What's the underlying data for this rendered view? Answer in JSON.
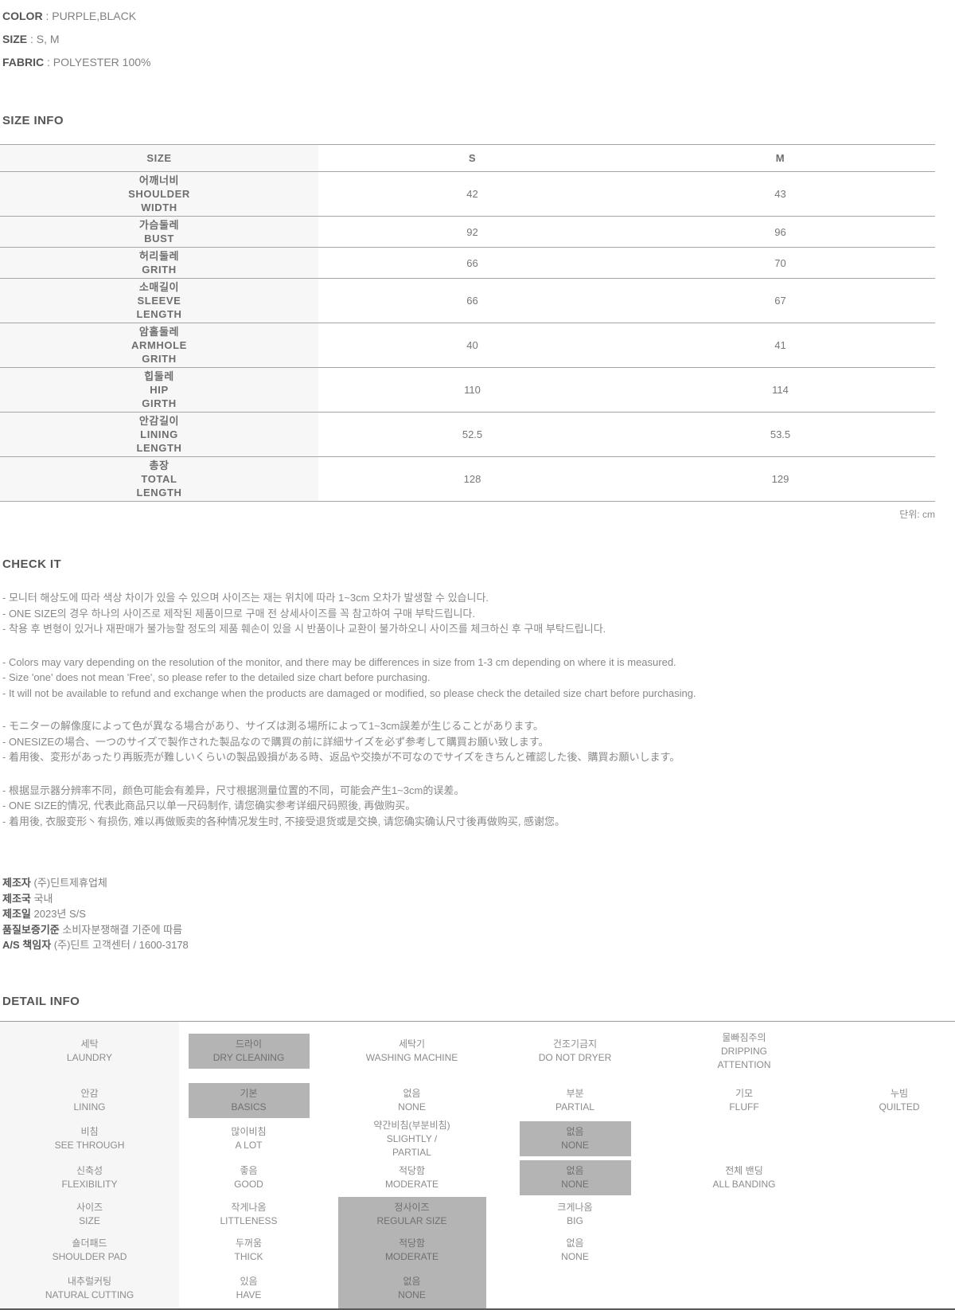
{
  "colors": {
    "highlight_gray": "#b4b4b4",
    "label_column_bg": "#f7f7f7",
    "heading_text": "#555555",
    "body_text": "#888888",
    "table_line": "#a6a6a6"
  },
  "product_info": {
    "rows": [
      {
        "label": "COLOR",
        "sep": " : ",
        "value": "PURPLE,BLACK"
      },
      {
        "label": "SIZE",
        "sep": " : ",
        "value": "S, M"
      },
      {
        "label": "FABRIC",
        "sep": " : ",
        "value": "POLYESTER 100%"
      }
    ]
  },
  "size_info": {
    "heading": "SIZE INFO",
    "unit_note": "단위: cm",
    "table": {
      "columns": [
        "SIZE",
        "S",
        "M"
      ],
      "rows": [
        {
          "name_ko": "어깨너비",
          "name_en": "SHOULDER\nWIDTH",
          "s": "42",
          "m": "43"
        },
        {
          "name_ko": "가슴둘레",
          "name_en": "BUST",
          "s": "92",
          "m": "96"
        },
        {
          "name_ko": "허리둘레",
          "name_en": "GRITH",
          "s": "66",
          "m": "70"
        },
        {
          "name_ko": "소매길이",
          "name_en": "SLEEVE\nLENGTH",
          "s": "66",
          "m": "67"
        },
        {
          "name_ko": "암홀둘레",
          "name_en": "ARMHOLE\nGRITH",
          "s": "40",
          "m": "41"
        },
        {
          "name_ko": "힙둘레",
          "name_en": "HIP\nGIRTH",
          "s": "110",
          "m": "114"
        },
        {
          "name_ko": "안감길이",
          "name_en": "LINING\nLENGTH",
          "s": "52.5",
          "m": "53.5"
        },
        {
          "name_ko": "총장",
          "name_en": "TOTAL\nLENGTH",
          "s": "128",
          "m": "129"
        }
      ]
    }
  },
  "check_it": {
    "heading": "CHECK IT",
    "paragraphs": [
      {
        "lines": [
          "- 모니터 해상도에 따라 색상 차이가 있을 수 있으며 사이즈는 재는 위치에 따라 1~3cm 오차가 발생할 수 있습니다.",
          "- ONE SIZE의 경우 하나의 사이즈로 제작된 제품이므로 구매 전 상세사이즈를 꼭 참고하여 구매 부탁드립니다.",
          "- 착용 후 변형이 있거나 재판매가 불가능할 정도의 제품 훼손이 있을 시 반품이나 교환이 불가하오니 사이즈를 체크하신 후 구매 부탁드립니다."
        ]
      },
      {
        "lines": [
          "- Colors may vary depending on the resolution of the monitor, and there may be differences in size from 1-3 cm depending on where it is measured.",
          "- Size 'one' does not mean 'Free', so please refer to the detailed size chart before purchasing.",
          "- It will not be available to refund and exchange when the products are damaged or modified, so please check the detailed size chart before purchasing."
        ]
      },
      {
        "lines": [
          "- モニターの解像度によって色が異なる場合があり、サイズは測る場所によって1~3cm誤差が生じることがあります。",
          "- ONESIZEの場合、一つのサイズで製作された製品なので購買の前に詳細サイズを必ず参考して購買お願い致します。",
          "- 着用後、変形があったり再販売が難しいくらいの製品毀損がある時、返品や交換が不可なのでサイズをきちんと確認した後、購買お願いします。"
        ]
      },
      {
        "lines": [
          "- 根据显示器分辨率不同，颜色可能会有差异，尺寸根据测量位置的不同，可能会产生1~3cm的误差。",
          "- ONE SIZE的情况, 代表此商品只以单一尺码制作, 请您确实参考详细尺码照後, 再做购买。",
          "- 着用後, 衣服变形丶有损伤, 难以再做贩卖的各种情况发生时, 不接受退货或是交换, 请您确实确认尺寸後再做购买, 感谢您。"
        ]
      }
    ]
  },
  "manufacturer": {
    "rows": [
      {
        "label": "제조자",
        "value": "(주)딘트제휴업체"
      },
      {
        "label": "제조국",
        "value": "국내"
      },
      {
        "label": "제조일",
        "value": "2023년 S/S"
      },
      {
        "label": "품질보증기준",
        "value": "소비자분쟁해결 기준에 따름"
      },
      {
        "label": "A/S 책임자",
        "value": "(주)딘트 고객센터 / 1600-3178"
      }
    ]
  },
  "detail_info": {
    "heading": "DETAIL INFO",
    "rows": [
      {
        "category": {
          "ko": "세탁",
          "en": "LAUNDRY"
        },
        "options": {
          "c2": {
            "ko": "드라이",
            "en": "DRY CLEANING",
            "selected": true
          },
          "c3": {
            "ko": "세탁기",
            "en": "WASHING MACHINE"
          },
          "c4": {
            "ko": "건조기금지",
            "en": "DO NOT DRYER"
          },
          "c5": {
            "ko": "물빠짐주의",
            "en": "DRIPPING\nATTENTION"
          }
        }
      },
      {
        "category": {
          "ko": "안감",
          "en": "LINING"
        },
        "options": {
          "c2": {
            "ko": "기본",
            "en": "BASICS",
            "selected": true
          },
          "c3": {
            "ko": "없음",
            "en": "NONE"
          },
          "c4": {
            "ko": "부분",
            "en": "PARTIAL"
          },
          "c5": {
            "ko": "기모",
            "en": "FLUFF"
          },
          "c6": {
            "ko": "누빔",
            "en": "QUILTED"
          }
        }
      },
      {
        "category": {
          "ko": "비침",
          "en": "SEE THROUGH"
        },
        "options": {
          "c2": {
            "ko": "많이비침",
            "en": "A LOT"
          },
          "c3": {
            "ko": "약간비침(부분비침)",
            "en": "SLIGHTLY /\nPARTIAL"
          },
          "c4": {
            "ko": "없음",
            "en": "NONE",
            "selected": true
          }
        }
      },
      {
        "category": {
          "ko": "신축성",
          "en": "FLEXIBILITY"
        },
        "options": {
          "c2": {
            "ko": "좋음",
            "en": "GOOD"
          },
          "c3": {
            "ko": "적당함",
            "en": "MODERATE"
          },
          "c4": {
            "ko": "없음",
            "en": "NONE",
            "selected": true
          },
          "c5": {
            "ko": "전체 밴딩",
            "en": "ALL BANDING"
          }
        }
      },
      {
        "category": {
          "ko": "사이즈",
          "en": "SIZE"
        },
        "options": {
          "c2": {
            "ko": "작게나옴",
            "en": "LITTLENESS"
          },
          "c3": {
            "ko": "정사이즈",
            "en": "REGULAR SIZE",
            "selected": true
          },
          "c4": {
            "ko": "크게나옴",
            "en": "BIG"
          }
        }
      },
      {
        "category": {
          "ko": "숄더패드",
          "en": "SHOULDER PAD"
        },
        "options": {
          "c2": {
            "ko": "두꺼움",
            "en": "THICK"
          },
          "c3": {
            "ko": "적당함",
            "en": "MODERATE",
            "selected": true
          },
          "c4": {
            "ko": "없음",
            "en": "NONE"
          }
        }
      },
      {
        "category": {
          "ko": "내추럴커팅",
          "en": "NATURAL CUTTING"
        },
        "options": {
          "c2": {
            "ko": "있음",
            "en": "HAVE"
          },
          "c3": {
            "ko": "없음",
            "en": "NONE",
            "selected": true
          }
        }
      }
    ]
  }
}
